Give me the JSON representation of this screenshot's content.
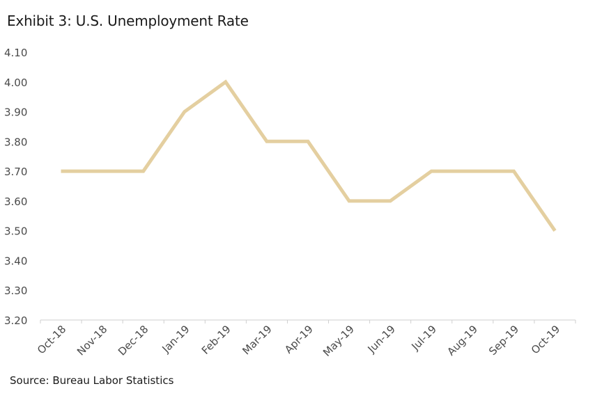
{
  "title": "Exhibit 3: U.S. Unemployment Rate",
  "source": "Source: Bureau Labor Statistics",
  "colors": {
    "line": "#e4cfa0",
    "axis": "#cfcfcf",
    "text": "#4a4a4a"
  },
  "chart_data": {
    "type": "line",
    "title": "Exhibit 3: U.S. Unemployment Rate",
    "xlabel": "",
    "ylabel": "",
    "categories": [
      "Oct-18",
      "Nov-18",
      "Dec-18",
      "Jan-19",
      "Feb-19",
      "Mar-19",
      "Apr-19",
      "May-19",
      "Jun-19",
      "Jul-19",
      "Aug-19",
      "Sep-19",
      "Oct-19"
    ],
    "series": [
      {
        "values": [
          3.7,
          3.7,
          3.7,
          3.9,
          4.0,
          3.8,
          3.8,
          3.6,
          3.6,
          3.7,
          3.7,
          3.7,
          3.5
        ]
      }
    ],
    "ylim": [
      3.2,
      4.1
    ],
    "yticks": [
      "3.20",
      "3.30",
      "3.40",
      "3.50",
      "3.60",
      "3.70",
      "3.80",
      "3.90",
      "4.00",
      "4.10"
    ],
    "grid": false,
    "legend": "none"
  }
}
